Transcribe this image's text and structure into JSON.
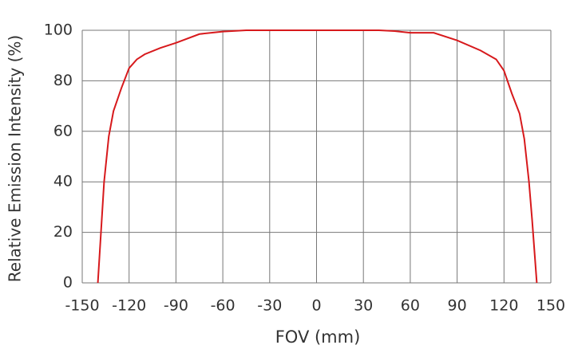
{
  "chart_data": {
    "type": "line",
    "x_label": "FOV (mm)",
    "y_label": "Relative Emission Intensity (%)",
    "x": [
      -140,
      -136,
      -133,
      -130,
      -125,
      -120,
      -115,
      -110,
      -100,
      -90,
      -75,
      -60,
      -45,
      0,
      40,
      50,
      60,
      75,
      90,
      105,
      115,
      120,
      125,
      130,
      133,
      136,
      138,
      141
    ],
    "series": [
      {
        "color": "#d7191c",
        "values": [
          0,
          40,
          58,
          68,
          77,
          85,
          88.5,
          90.5,
          93,
          95,
          98.5,
          99.5,
          100,
          100,
          100,
          99.7,
          99,
          99,
          96,
          92,
          88.5,
          84,
          75,
          67,
          57,
          40,
          25,
          0
        ]
      }
    ],
    "xlim": [
      -150,
      150
    ],
    "xticks": [
      -150,
      -120,
      -90,
      -60,
      -30,
      0,
      30,
      60,
      90,
      120,
      150
    ],
    "ylim": [
      0,
      100
    ],
    "yticks": [
      0,
      20,
      40,
      60,
      80,
      100
    ],
    "grid": true
  }
}
